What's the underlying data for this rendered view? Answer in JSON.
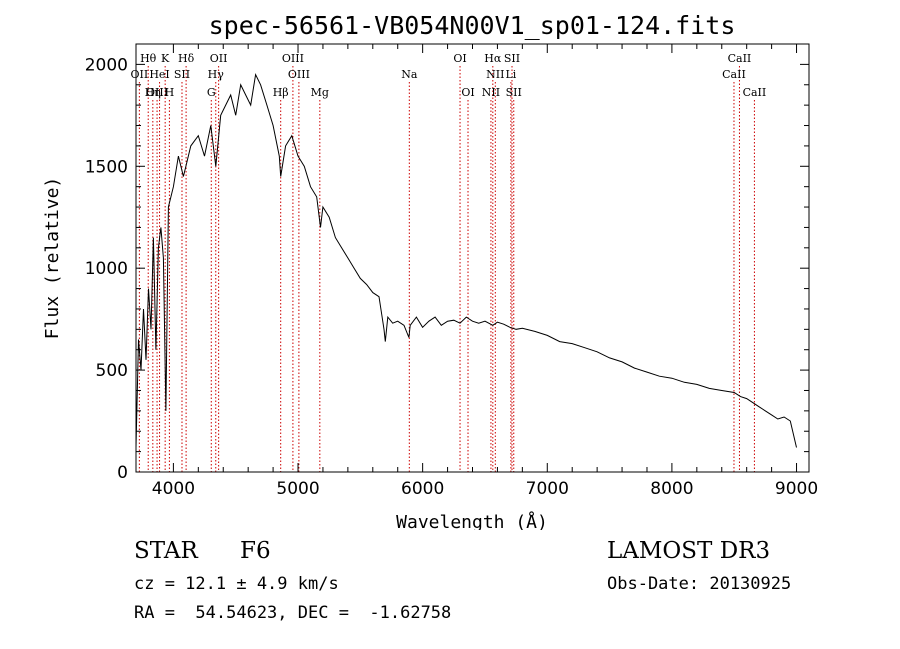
{
  "chart_data": {
    "type": "line",
    "title": "spec-56561-VB054N00V1_sp01-124.fits",
    "xlabel": "Wavelength (Å)",
    "ylabel": "Flux (relative)",
    "xlim": [
      3700,
      9100
    ],
    "ylim": [
      0,
      2100
    ],
    "x_ticks": [
      4000,
      5000,
      6000,
      7000,
      8000,
      9000
    ],
    "y_ticks": [
      0,
      500,
      1000,
      1500,
      2000
    ],
    "series": [
      {
        "name": "flux",
        "x": [
          3700,
          3720,
          3740,
          3760,
          3780,
          3800,
          3820,
          3840,
          3860,
          3880,
          3900,
          3920,
          3940,
          3960,
          3980,
          4000,
          4040,
          4080,
          4100,
          4140,
          4200,
          4250,
          4300,
          4340,
          4380,
          4420,
          4460,
          4500,
          4540,
          4580,
          4620,
          4660,
          4700,
          4750,
          4800,
          4850,
          4861,
          4900,
          4950,
          5000,
          5050,
          5100,
          5150,
          5180,
          5200,
          5250,
          5300,
          5350,
          5400,
          5450,
          5500,
          5550,
          5600,
          5650,
          5690,
          5700,
          5720,
          5760,
          5800,
          5850,
          5890,
          5900,
          5950,
          6000,
          6050,
          6100,
          6150,
          6200,
          6250,
          6300,
          6350,
          6400,
          6450,
          6500,
          6563,
          6600,
          6650,
          6700,
          6750,
          6800,
          6900,
          7000,
          7100,
          7200,
          7300,
          7400,
          7500,
          7600,
          7700,
          7800,
          7900,
          8000,
          8100,
          8200,
          8300,
          8400,
          8500,
          8550,
          8600,
          8650,
          8700,
          8750,
          8800,
          8850,
          8900,
          8950,
          9000
        ],
        "y": [
          120,
          650,
          500,
          800,
          550,
          900,
          700,
          1150,
          600,
          1100,
          1200,
          1050,
          300,
          1300,
          1350,
          1400,
          1550,
          1450,
          1500,
          1600,
          1650,
          1550,
          1700,
          1500,
          1750,
          1800,
          1850,
          1750,
          1900,
          1850,
          1800,
          1950,
          1900,
          1800,
          1700,
          1550,
          1450,
          1600,
          1650,
          1550,
          1500,
          1400,
          1350,
          1200,
          1300,
          1250,
          1150,
          1100,
          1050,
          1000,
          950,
          920,
          880,
          860,
          700,
          640,
          760,
          730,
          740,
          720,
          660,
          720,
          760,
          710,
          740,
          760,
          720,
          740,
          745,
          730,
          760,
          740,
          730,
          740,
          720,
          735,
          725,
          710,
          700,
          705,
          690,
          670,
          640,
          630,
          610,
          590,
          560,
          540,
          510,
          490,
          470,
          460,
          440,
          430,
          410,
          400,
          390,
          370,
          360,
          340,
          320,
          300,
          280,
          260,
          270,
          250,
          120
        ]
      }
    ],
    "lines_top": [
      {
        "label": "Hθ",
        "wave": 3798
      },
      {
        "label": "K",
        "wave": 3934
      },
      {
        "label": "Hδ",
        "wave": 4102
      },
      {
        "label": "OII",
        "wave": 4363
      },
      {
        "label": "OIII",
        "wave": 4959
      },
      {
        "label": "OI",
        "wave": 6300
      },
      {
        "label": "Hα",
        "wave": 6563
      },
      {
        "label": "SII",
        "wave": 6717
      },
      {
        "label": "CaII",
        "wave": 8542
      }
    ],
    "lines_mid": [
      {
        "label": "OII",
        "wave": 3727
      },
      {
        "label": "HeI",
        "wave": 3889
      },
      {
        "label": "SII",
        "wave": 4069
      },
      {
        "label": "Hγ",
        "wave": 4340
      },
      {
        "label": "OIII",
        "wave": 5007
      },
      {
        "label": "Na",
        "wave": 5893
      },
      {
        "label": "NII",
        "wave": 6583
      },
      {
        "label": "Li",
        "wave": 6708
      },
      {
        "label": "CaII",
        "wave": 8498
      }
    ],
    "lines_bottom": [
      {
        "label": "OIII",
        "wave": 3869
      },
      {
        "label": "Hη",
        "wave": 3835
      },
      {
        "label": "H",
        "wave": 3968
      },
      {
        "label": "G",
        "wave": 4304
      },
      {
        "label": "Hβ",
        "wave": 4861
      },
      {
        "label": "Mg",
        "wave": 5175
      },
      {
        "label": "OI",
        "wave": 6364
      },
      {
        "label": "NII",
        "wave": 6548
      },
      {
        "label": "SII",
        "wave": 6731
      },
      {
        "label": "CaII",
        "wave": 8662
      }
    ]
  },
  "info": {
    "obj_class": "STAR",
    "obj_subclass": "F6",
    "survey": "LAMOST DR3",
    "cz_line": "cz = 12.1 ± 4.9 km/s",
    "obs_date": "Obs-Date: 20130925",
    "radec": "RA =  54.54623, DEC =  -1.62758"
  },
  "colors": {
    "axis": "#000000",
    "flux": "#000000",
    "emission_line": "#cc0000"
  }
}
